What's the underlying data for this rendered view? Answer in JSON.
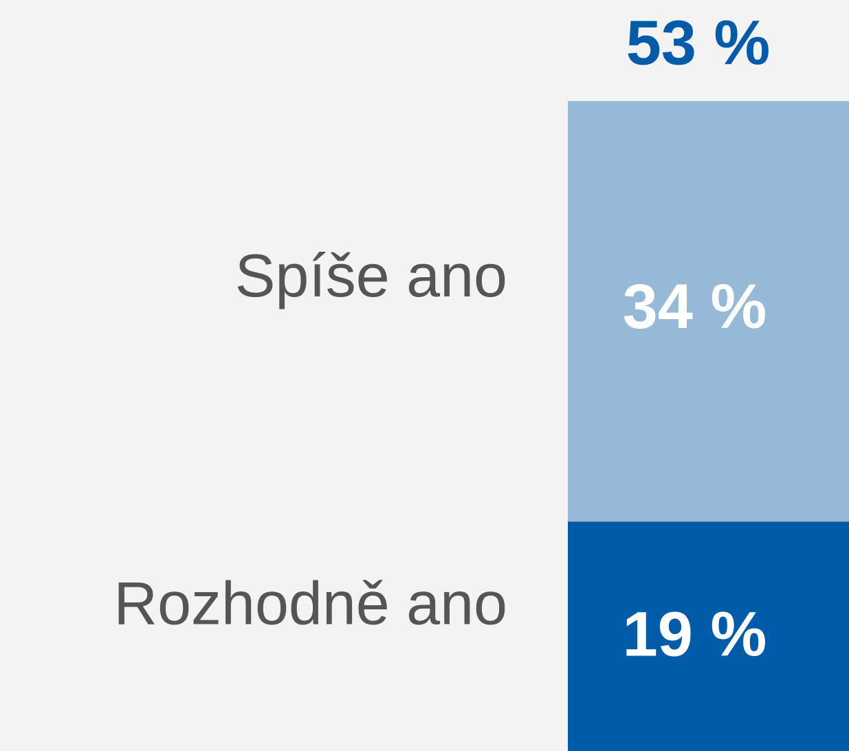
{
  "chart_data": {
    "type": "stacked_bar",
    "series": [
      {
        "name": "Rozhodně ano",
        "color": "#005ca9",
        "values": [
          19
        ],
        "value_labels": [
          "19 %"
        ]
      },
      {
        "name": "Spíše ano",
        "color": "#96b9d7",
        "values": [
          34
        ],
        "value_labels": [
          "34 %"
        ]
      }
    ],
    "totals": [
      53
    ],
    "total_labels": [
      "53 %"
    ]
  }
}
